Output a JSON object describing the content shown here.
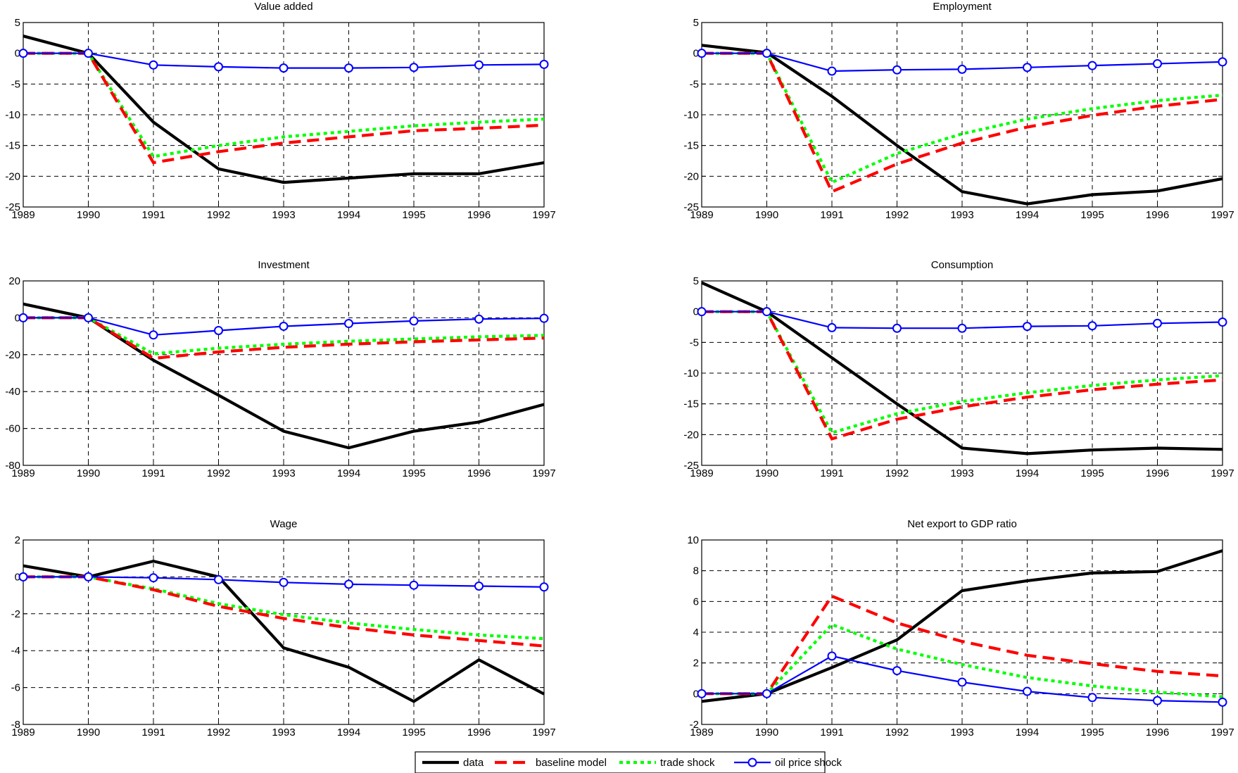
{
  "chart_data": [
    {
      "type": "line",
      "title": "Value added",
      "x": [
        1989,
        1990,
        1991,
        1992,
        1993,
        1994,
        1995,
        1996,
        1997
      ],
      "xlim": [
        1989,
        1997
      ],
      "ylim": [
        -25,
        5
      ],
      "yticks": [
        5,
        0,
        -5,
        -10,
        -15,
        -20,
        -25
      ],
      "grid": true,
      "series": [
        {
          "name": "data",
          "values": [
            2.8,
            0,
            -11.2,
            -18.8,
            -21,
            -20.3,
            -19.6,
            -19.6,
            -17.8
          ]
        },
        {
          "name": "baseline model",
          "values": [
            0,
            0,
            -17.8,
            -16,
            -14.6,
            -13.6,
            -12.6,
            -12.2,
            -11.7
          ]
        },
        {
          "name": "trade shock",
          "values": [
            0,
            0,
            -16.8,
            -15,
            -13.6,
            -12.7,
            -11.8,
            -11.2,
            -10.7
          ]
        },
        {
          "name": "oil price shock",
          "values": [
            0,
            0,
            -1.9,
            -2.2,
            -2.4,
            -2.4,
            -2.3,
            -1.9,
            -1.8
          ]
        }
      ]
    },
    {
      "type": "line",
      "title": "Employment",
      "x": [
        1989,
        1990,
        1991,
        1992,
        1993,
        1994,
        1995,
        1996,
        1997
      ],
      "xlim": [
        1989,
        1997
      ],
      "ylim": [
        -25,
        5
      ],
      "yticks": [
        5,
        0,
        -5,
        -10,
        -15,
        -20,
        -25
      ],
      "grid": true,
      "series": [
        {
          "name": "data",
          "values": [
            1.3,
            0.1,
            -7,
            -15,
            -22.5,
            -24.5,
            -23,
            -22.4,
            -20.4
          ]
        },
        {
          "name": "baseline model",
          "values": [
            0,
            0,
            -22.5,
            -18,
            -14.6,
            -12,
            -10.1,
            -8.6,
            -7.5
          ]
        },
        {
          "name": "trade shock",
          "values": [
            0,
            0,
            -21,
            -16.3,
            -13.1,
            -10.7,
            -9,
            -7.7,
            -6.8
          ]
        },
        {
          "name": "oil price shock",
          "values": [
            0,
            0,
            -2.9,
            -2.7,
            -2.6,
            -2.3,
            -2,
            -1.7,
            -1.4
          ]
        }
      ]
    },
    {
      "type": "line",
      "title": "Investment",
      "x": [
        1989,
        1990,
        1991,
        1992,
        1993,
        1994,
        1995,
        1996,
        1997
      ],
      "xlim": [
        1989,
        1997
      ],
      "ylim": [
        -80,
        20
      ],
      "yticks": [
        20,
        0,
        -20,
        -40,
        -60,
        -80
      ],
      "grid": true,
      "series": [
        {
          "name": "data",
          "values": [
            7.5,
            0,
            -23,
            -42,
            -61.5,
            -70.5,
            -61.5,
            -56.5,
            -47
          ]
        },
        {
          "name": "baseline model",
          "values": [
            0,
            0,
            -22,
            -18.5,
            -16,
            -14.3,
            -13,
            -12,
            -11
          ]
        },
        {
          "name": "trade shock",
          "values": [
            0,
            0,
            -19.5,
            -16.5,
            -14.3,
            -12.7,
            -11.5,
            -10.3,
            -9.5
          ]
        },
        {
          "name": "oil price shock",
          "values": [
            0,
            0,
            -9.3,
            -6.9,
            -4.6,
            -3.1,
            -1.7,
            -0.7,
            -0.3
          ]
        }
      ]
    },
    {
      "type": "line",
      "title": "Consumption",
      "x": [
        1989,
        1990,
        1991,
        1992,
        1993,
        1994,
        1995,
        1996,
        1997
      ],
      "xlim": [
        1989,
        1997
      ],
      "ylim": [
        -25,
        5
      ],
      "yticks": [
        5,
        0,
        -5,
        -10,
        -15,
        -20,
        -25
      ],
      "grid": true,
      "series": [
        {
          "name": "data",
          "values": [
            4.7,
            0,
            -7.5,
            -15,
            -22.2,
            -23.1,
            -22.5,
            -22.2,
            -22.4
          ]
        },
        {
          "name": "baseline model",
          "values": [
            0,
            0,
            -20.7,
            -17.5,
            -15.5,
            -13.9,
            -12.7,
            -11.8,
            -11.1
          ]
        },
        {
          "name": "trade shock",
          "values": [
            0,
            0,
            -19.7,
            -16.6,
            -14.6,
            -13.2,
            -12,
            -11.1,
            -10.4
          ]
        },
        {
          "name": "oil price shock",
          "values": [
            0,
            0,
            -2.6,
            -2.7,
            -2.7,
            -2.4,
            -2.3,
            -1.9,
            -1.7
          ]
        }
      ]
    },
    {
      "type": "line",
      "title": "Wage",
      "x": [
        1989,
        1990,
        1991,
        1992,
        1993,
        1994,
        1995,
        1996,
        1997
      ],
      "xlim": [
        1989,
        1997
      ],
      "ylim": [
        -8,
        2
      ],
      "yticks": [
        2,
        0,
        -2,
        -4,
        -6,
        -8
      ],
      "grid": true,
      "series": [
        {
          "name": "data",
          "values": [
            0.6,
            0,
            0.85,
            0,
            -3.85,
            -4.9,
            -6.75,
            -4.5,
            -6.35
          ]
        },
        {
          "name": "baseline model",
          "values": [
            0,
            0,
            -0.7,
            -1.6,
            -2.25,
            -2.75,
            -3.15,
            -3.45,
            -3.75
          ]
        },
        {
          "name": "trade shock",
          "values": [
            0,
            0,
            -0.65,
            -1.45,
            -2.05,
            -2.5,
            -2.85,
            -3.15,
            -3.35
          ]
        },
        {
          "name": "oil price shock",
          "values": [
            0,
            0,
            -0.05,
            -0.15,
            -0.3,
            -0.4,
            -0.45,
            -0.5,
            -0.55
          ]
        }
      ]
    },
    {
      "type": "line",
      "title": "Net export to GDP ratio",
      "x": [
        1989,
        1990,
        1991,
        1992,
        1993,
        1994,
        1995,
        1996,
        1997
      ],
      "xlim": [
        1989,
        1997
      ],
      "ylim": [
        -2,
        10
      ],
      "yticks": [
        10,
        8,
        6,
        4,
        2,
        0,
        -2
      ],
      "grid": true,
      "series": [
        {
          "name": "data",
          "values": [
            -0.5,
            0,
            1.7,
            3.5,
            6.7,
            7.35,
            7.85,
            7.95,
            9.3
          ]
        },
        {
          "name": "baseline model",
          "values": [
            0,
            0,
            6.35,
            4.6,
            3.4,
            2.5,
            1.95,
            1.45,
            1.15
          ]
        },
        {
          "name": "trade shock",
          "values": [
            0,
            0,
            4.5,
            2.9,
            1.9,
            1.05,
            0.5,
            0.1,
            -0.2
          ]
        },
        {
          "name": "oil price shock",
          "values": [
            0,
            0,
            2.45,
            1.5,
            0.75,
            0.15,
            -0.25,
            -0.45,
            -0.55
          ]
        }
      ]
    }
  ],
  "legend": {
    "placement": "bottom-center",
    "items": [
      {
        "name": "data",
        "style": "solid",
        "color": "#000000"
      },
      {
        "name": "baseline model",
        "style": "dashed",
        "color": "#ff0000"
      },
      {
        "name": "trade shock",
        "style": "dotted",
        "color": "#00ff00"
      },
      {
        "name": "oil price shock",
        "style": "circle-marker",
        "color": "#0000ff"
      }
    ]
  },
  "colors": {
    "data": "#000000",
    "baseline model": "#ff0000",
    "trade shock": "#00ff00",
    "oil price shock": "#0000ff"
  }
}
